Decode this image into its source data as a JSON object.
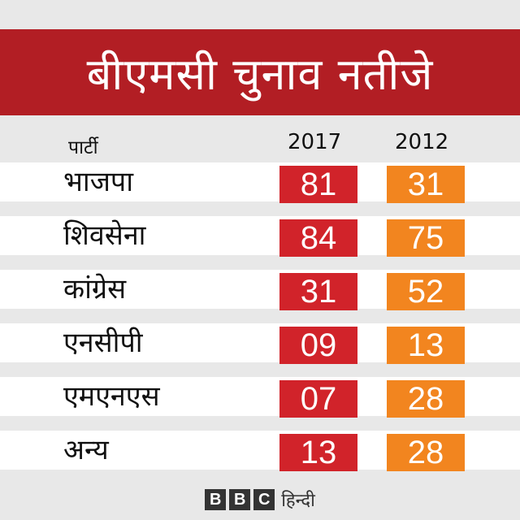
{
  "title": "बीएमसी चुनाव नतीजे",
  "colors": {
    "title_bg": "#b21e24",
    "col_2017": "#d1232a",
    "col_2012": "#f2851f"
  },
  "chart_data": {
    "type": "table",
    "title": "बीएमसी चुनाव नतीजे",
    "columns": [
      "पार्टी",
      "2017",
      "2012"
    ],
    "categories": [
      "भाजपा",
      "शिवसेना",
      "कांग्रेस",
      "एनसीपी",
      "एमएनएस",
      "अन्य"
    ],
    "series": [
      {
        "name": "2017",
        "values": [
          "81",
          "84",
          "31",
          "09",
          "07",
          "13"
        ]
      },
      {
        "name": "2012",
        "values": [
          "31",
          "75",
          "52",
          "13",
          "28",
          "28"
        ]
      }
    ]
  },
  "footer": {
    "bbc_letters": [
      "B",
      "B",
      "C"
    ],
    "hindi": "हिन्दी"
  }
}
